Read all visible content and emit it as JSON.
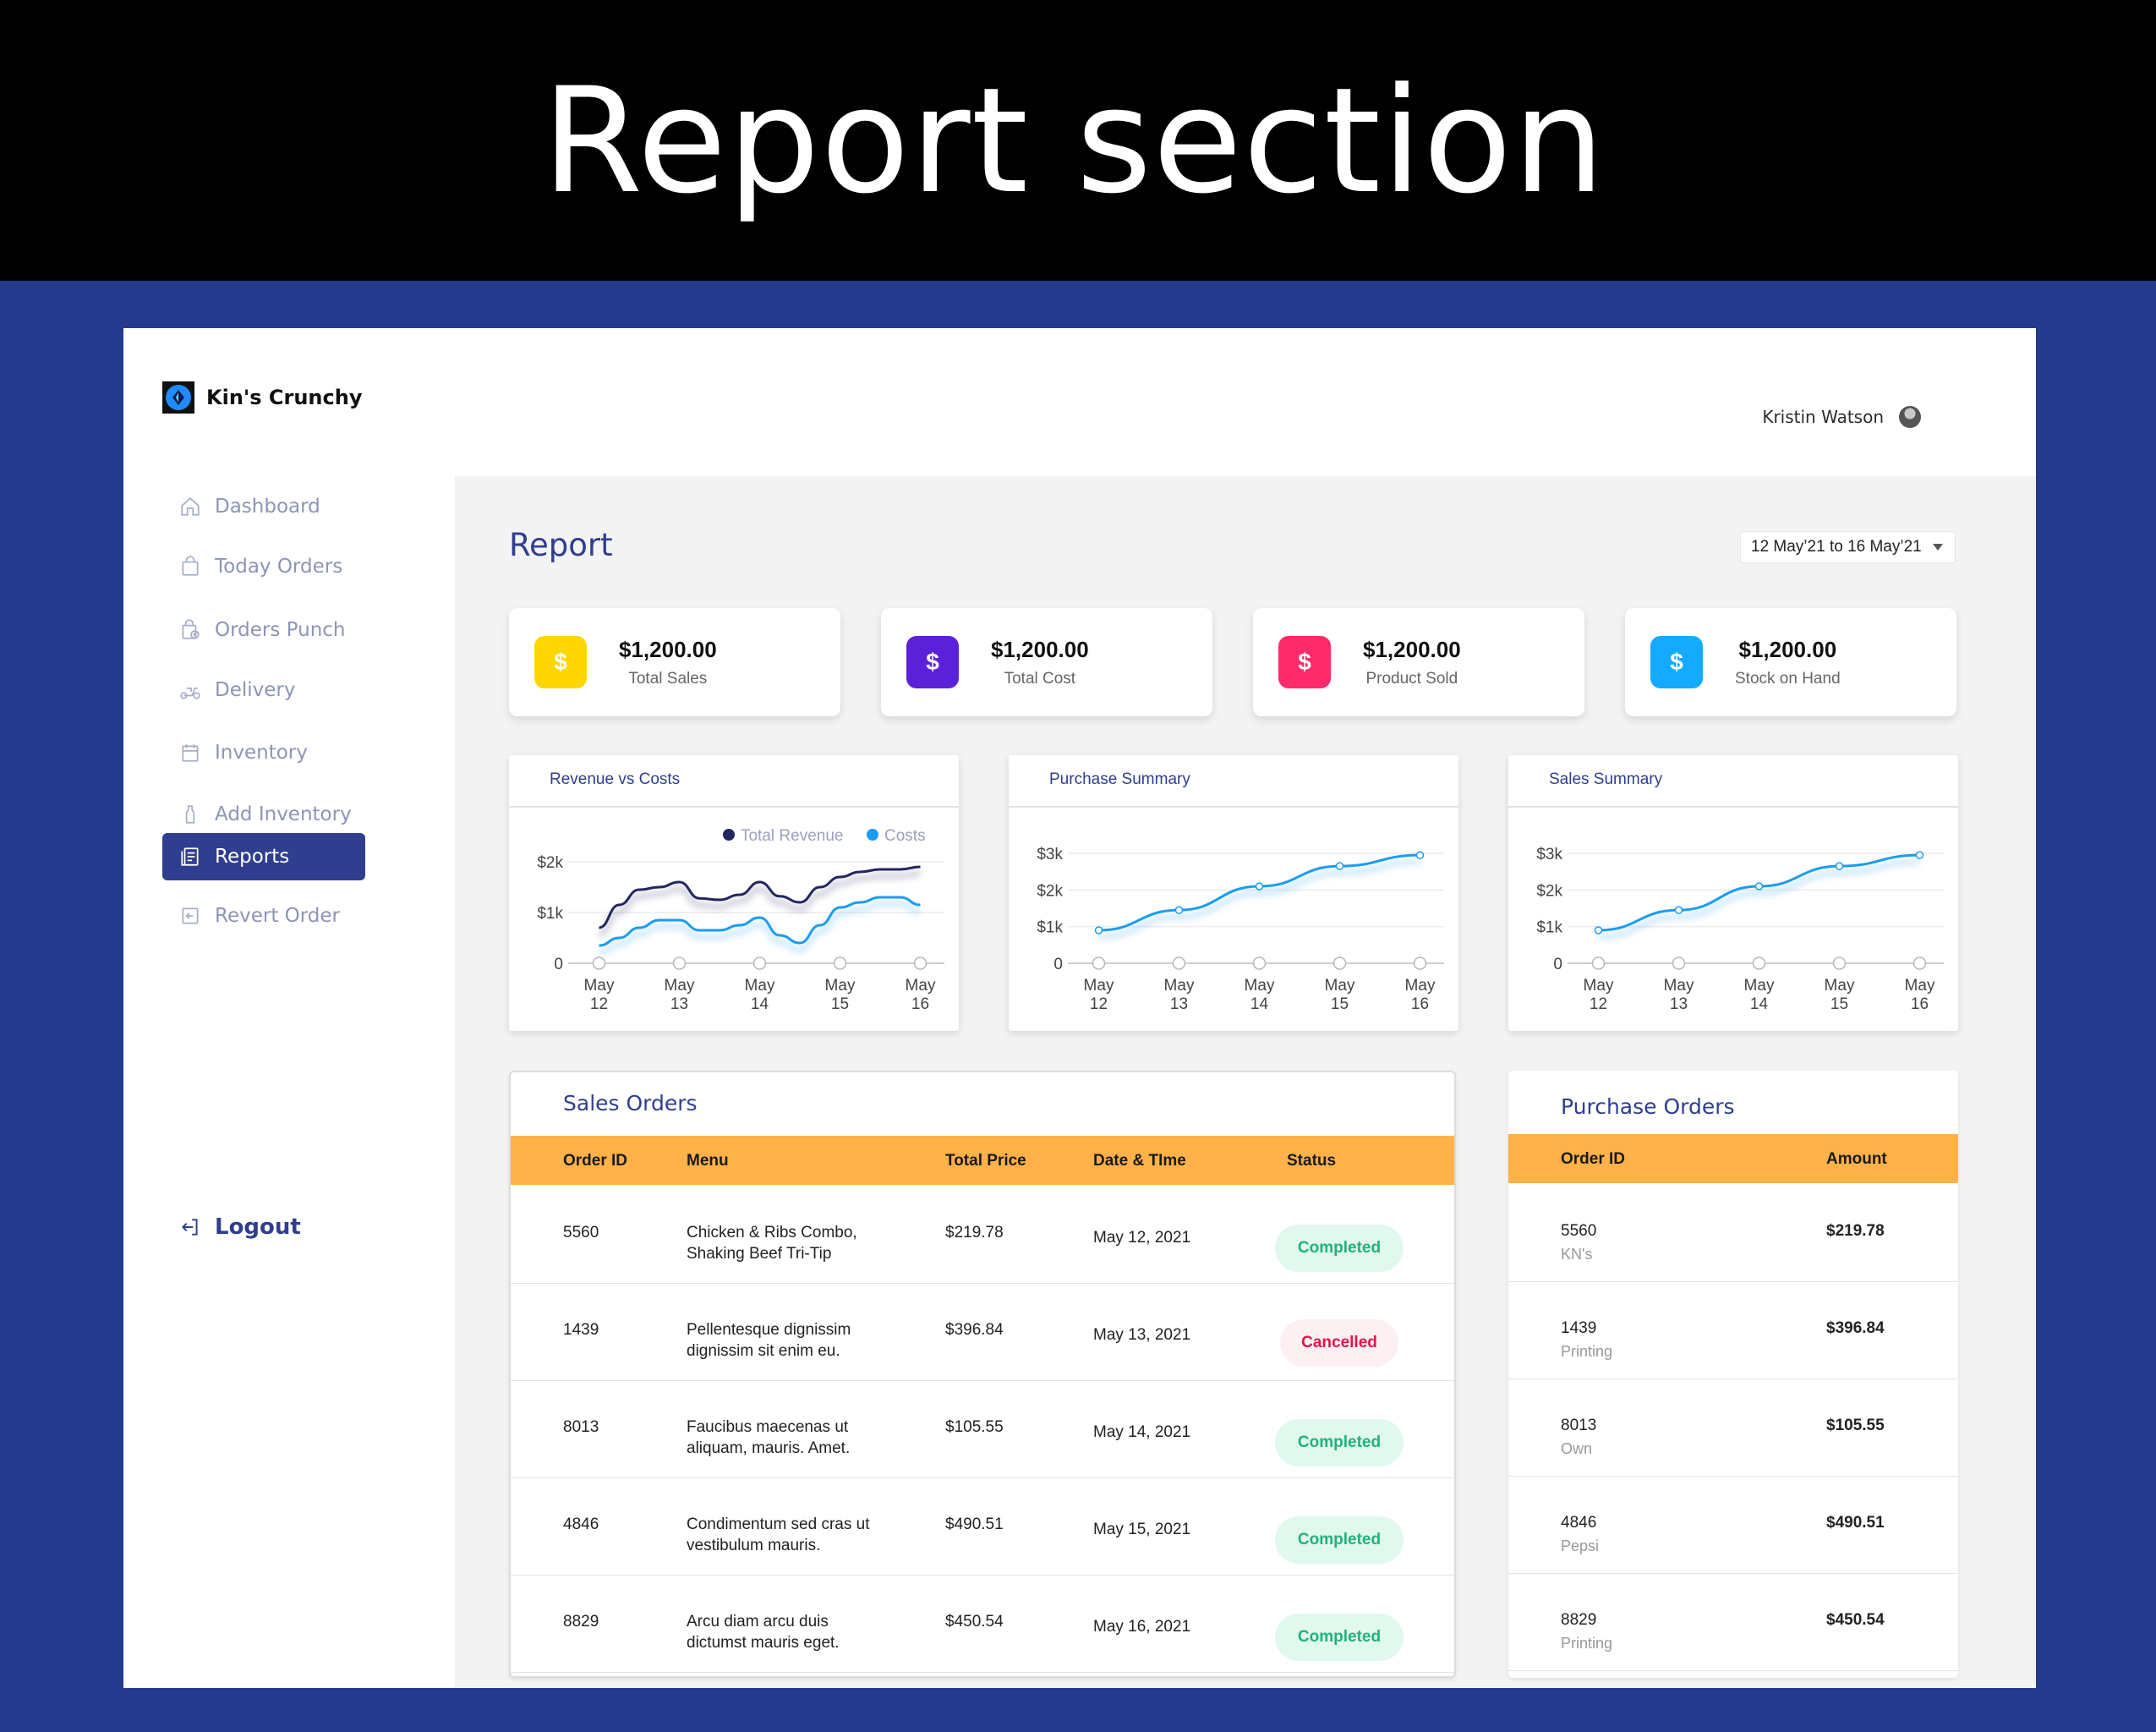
{
  "banner": {
    "title": "Report section"
  },
  "app": {
    "name": "Kin's Crunchy"
  },
  "user": {
    "name": "Kristin Watson"
  },
  "sidebar": {
    "items": [
      {
        "label": "Dashboard",
        "icon": "home-icon"
      },
      {
        "label": "Today Orders",
        "icon": "bag-icon"
      },
      {
        "label": "Orders Punch",
        "icon": "bag-plus-icon"
      },
      {
        "label": "Delivery",
        "icon": "scooter-icon"
      },
      {
        "label": "Inventory",
        "icon": "calendar-icon"
      },
      {
        "label": "Add Inventory",
        "icon": "bottle-icon"
      },
      {
        "label": "Reports",
        "icon": "document-icon",
        "active": true
      },
      {
        "label": "Revert Order",
        "icon": "revert-icon"
      }
    ],
    "logout": "Logout"
  },
  "report": {
    "title": "Report",
    "date_range": "12 May’21 to 16 May’21"
  },
  "stats": [
    {
      "value": "$1,200.00",
      "label": "Total Sales",
      "color": "#ffd600",
      "icon": "dollar-icon"
    },
    {
      "value": "$1,200.00",
      "label": "Total Cost",
      "color": "#5b21d9",
      "icon": "dollar-icon"
    },
    {
      "value": "$1,200.00",
      "label": "Product Sold",
      "color": "#ff2a6b",
      "icon": "dollar-icon"
    },
    {
      "value": "$1,200.00",
      "label": "Stock on Hand",
      "color": "#13aaff",
      "icon": "dollar-icon"
    }
  ],
  "chart_data": [
    {
      "type": "line",
      "title": "Revenue vs Costs",
      "categories": [
        "May 12",
        "May 13",
        "May 14",
        "May 15",
        "May 16"
      ],
      "tick_lines": [
        [
          "May",
          "12"
        ],
        [
          "May",
          "13"
        ],
        [
          "May",
          "14"
        ],
        [
          "May",
          "15"
        ],
        [
          "May",
          "16"
        ]
      ],
      "y_ticks": [
        "0",
        "$1k",
        "$2k"
      ],
      "ylim": [
        0,
        2000
      ],
      "legend": "top-right",
      "series": [
        {
          "name": "Total Revenue",
          "color": "#22275e",
          "x": [
            0,
            0.25,
            0.5,
            0.75,
            1,
            1.25,
            1.5,
            1.75,
            2,
            2.25,
            2.5,
            2.75,
            3,
            3.25,
            3.5,
            3.75,
            4
          ],
          "values": [
            700,
            1150,
            1450,
            1500,
            1600,
            1280,
            1250,
            1350,
            1600,
            1320,
            1200,
            1500,
            1700,
            1800,
            1850,
            1850,
            1900
          ]
        },
        {
          "name": "Costs",
          "color": "#1b9cf2",
          "x": [
            0,
            0.25,
            0.5,
            0.75,
            1,
            1.25,
            1.5,
            1.75,
            2,
            2.25,
            2.5,
            2.75,
            3,
            3.25,
            3.5,
            3.75,
            4
          ],
          "values": [
            350,
            500,
            700,
            850,
            850,
            650,
            650,
            750,
            900,
            550,
            400,
            750,
            1100,
            1200,
            1300,
            1300,
            1150
          ]
        }
      ]
    },
    {
      "type": "line",
      "title": "Purchase Summary",
      "categories": [
        "May 12",
        "May 13",
        "May 14",
        "May 15",
        "May 16"
      ],
      "tick_lines": [
        [
          "May",
          "12"
        ],
        [
          "May",
          "13"
        ],
        [
          "May",
          "14"
        ],
        [
          "May",
          "15"
        ],
        [
          "May",
          "16"
        ]
      ],
      "y_ticks": [
        "0",
        "$1k",
        "$2k",
        "$3k"
      ],
      "ylim": [
        0,
        3000
      ],
      "series": [
        {
          "color": "#1b9cf2",
          "values": [
            900,
            1450,
            2100,
            2650,
            2950
          ]
        }
      ]
    },
    {
      "type": "line",
      "title": "Sales Summary",
      "categories": [
        "May 12",
        "May 13",
        "May 14",
        "May 15",
        "May 16"
      ],
      "tick_lines": [
        [
          "May",
          "12"
        ],
        [
          "May",
          "13"
        ],
        [
          "May",
          "14"
        ],
        [
          "May",
          "15"
        ],
        [
          "May",
          "16"
        ]
      ],
      "y_ticks": [
        "0",
        "$1k",
        "$2k",
        "$3k"
      ],
      "ylim": [
        0,
        3000
      ],
      "series": [
        {
          "color": "#1b9cf2",
          "values": [
            900,
            1450,
            2100,
            2650,
            2950
          ]
        }
      ]
    }
  ],
  "sales_orders": {
    "title": "Sales Orders",
    "headers": [
      "Order ID",
      "Menu",
      "Total Price",
      "Date & TIme",
      "Status"
    ],
    "rows": [
      {
        "id": "5560",
        "menu1": "Chicken & Ribs Combo,",
        "menu2": "Shaking Beef Tri-Tip",
        "price": "$219.78",
        "date": "May 12, 2021",
        "status": "Completed"
      },
      {
        "id": "1439",
        "menu1": "Pellentesque dignissim",
        "menu2": "dignissim sit enim eu.",
        "price": "$396.84",
        "date": "May 13, 2021",
        "status": "Cancelled"
      },
      {
        "id": "8013",
        "menu1": "Faucibus maecenas ut",
        "menu2": "aliquam, mauris. Amet.",
        "price": "$105.55",
        "date": "May 14, 2021",
        "status": "Completed"
      },
      {
        "id": "4846",
        "menu1": "Condimentum sed cras ut",
        "menu2": "vestibulum mauris.",
        "price": "$490.51",
        "date": "May 15, 2021",
        "status": "Completed"
      },
      {
        "id": "8829",
        "menu1": "Arcu diam arcu duis",
        "menu2": "dictumst mauris eget.",
        "price": "$450.54",
        "date": "May 16, 2021",
        "status": "Completed"
      }
    ]
  },
  "purchase_orders": {
    "title": "Purchase Orders",
    "headers": [
      "Order ID",
      "Amount"
    ],
    "rows": [
      {
        "id": "5560",
        "vendor": "KN's",
        "amount": "$219.78"
      },
      {
        "id": "1439",
        "vendor": "Printing",
        "amount": "$396.84"
      },
      {
        "id": "8013",
        "vendor": "Own",
        "amount": "$105.55"
      },
      {
        "id": "4846",
        "vendor": "Pepsi",
        "amount": "$490.51"
      },
      {
        "id": "8829",
        "vendor": "Printing",
        "amount": "$450.54"
      }
    ]
  }
}
